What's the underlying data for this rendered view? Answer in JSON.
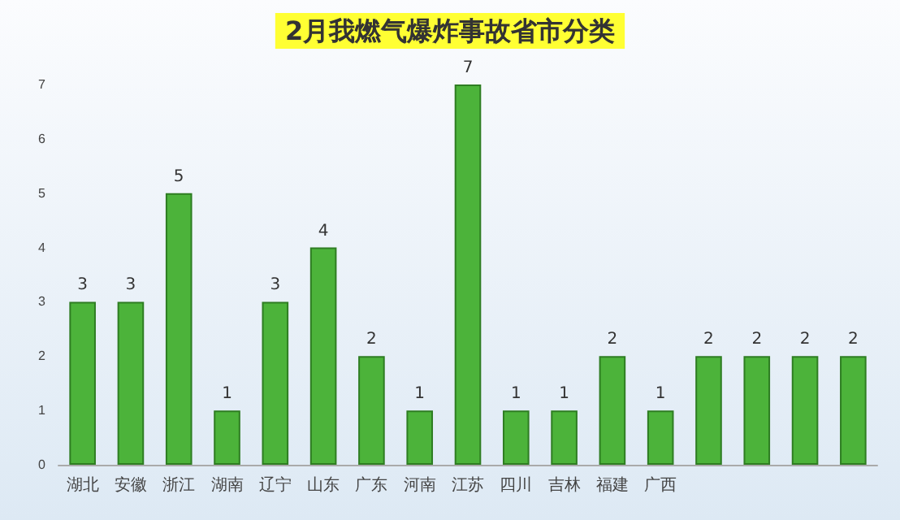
{
  "chart_data": {
    "type": "bar",
    "title": "2月我燃气爆炸事故省市分类",
    "categories": [
      "湖北",
      "安徽",
      "浙江",
      "湖南",
      "辽宁",
      "山东",
      "广东",
      "河南",
      "江苏",
      "四川",
      "吉林",
      "福建",
      "广西",
      null,
      null,
      null,
      null
    ],
    "values": [
      3,
      3,
      5,
      1,
      3,
      4,
      2,
      1,
      7,
      1,
      1,
      2,
      1,
      2,
      2,
      2,
      2
    ],
    "color": "#4cb33a",
    "ylim": [
      0,
      7
    ],
    "yticks": [
      0,
      1,
      2,
      3,
      4,
      5,
      6,
      7
    ],
    "grid": false,
    "data_labels": true
  }
}
